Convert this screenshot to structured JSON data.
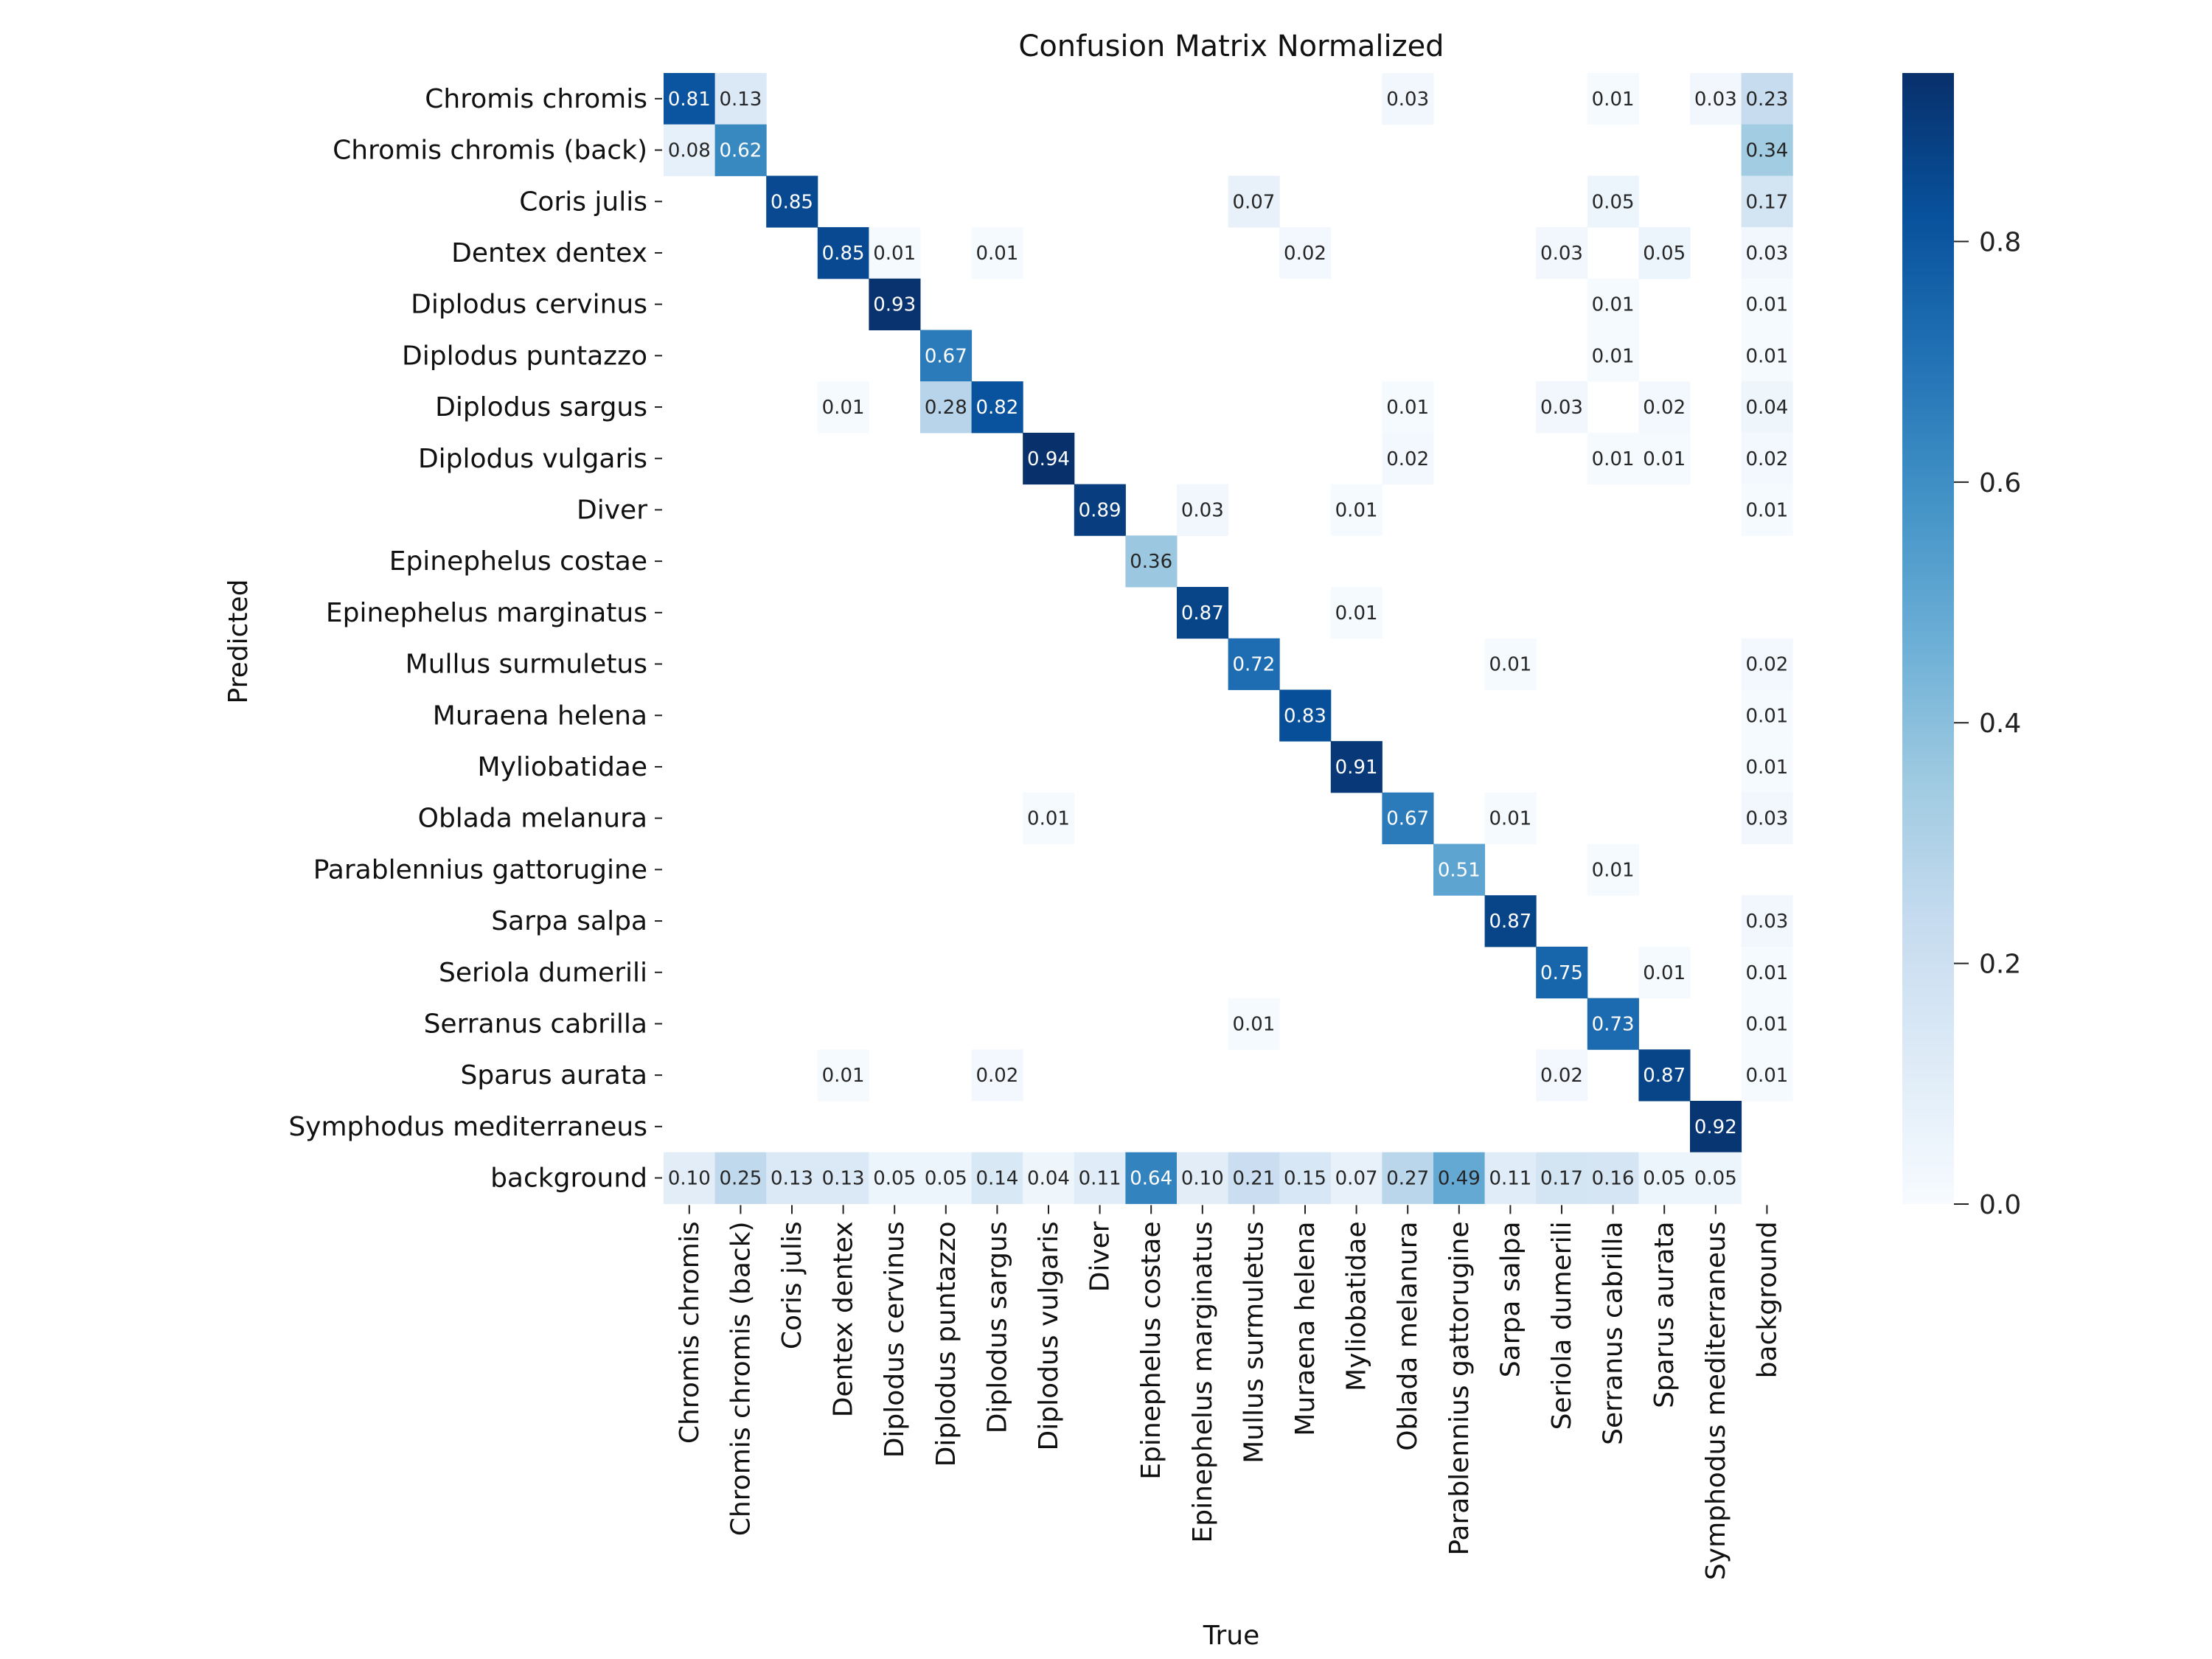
{
  "chart_data": {
    "type": "heatmap",
    "title": "Confusion Matrix Normalized",
    "xlabel": "True",
    "ylabel": "Predicted",
    "colormap": "Blues",
    "colorbar": {
      "ticks": [
        "0.0",
        "0.2",
        "0.4",
        "0.6",
        "0.8"
      ],
      "range": [
        0.0,
        0.94
      ]
    },
    "labels": [
      "Chromis chromis",
      "Chromis chromis (back)",
      "Coris julis",
      "Dentex dentex",
      "Diplodus cervinus",
      "Diplodus puntazzo",
      "Diplodus sargus",
      "Diplodus vulgaris",
      "Diver",
      "Epinephelus costae",
      "Epinephelus marginatus",
      "Mullus surmuletus",
      "Muraena helena",
      "Myliobatidae",
      "Oblada melanura",
      "Parablennius gattorugine",
      "Sarpa salpa",
      "Seriola dumerili",
      "Serranus cabrilla",
      "Sparus aurata",
      "Symphodus mediterraneus",
      "background"
    ],
    "matrix": [
      [
        0.81,
        0.13,
        null,
        null,
        null,
        null,
        null,
        null,
        null,
        null,
        null,
        null,
        null,
        null,
        0.03,
        null,
        null,
        null,
        0.01,
        null,
        0.03,
        0.23
      ],
      [
        0.08,
        0.62,
        null,
        null,
        null,
        null,
        null,
        null,
        null,
        null,
        null,
        null,
        null,
        null,
        null,
        null,
        null,
        null,
        null,
        null,
        null,
        0.34
      ],
      [
        null,
        null,
        0.85,
        null,
        null,
        null,
        null,
        null,
        null,
        null,
        null,
        0.07,
        null,
        null,
        null,
        null,
        null,
        null,
        0.05,
        null,
        null,
        0.17
      ],
      [
        null,
        null,
        null,
        0.85,
        0.01,
        null,
        0.01,
        null,
        null,
        null,
        null,
        null,
        0.02,
        null,
        null,
        null,
        null,
        0.03,
        null,
        0.05,
        null,
        0.03
      ],
      [
        null,
        null,
        null,
        null,
        0.93,
        null,
        null,
        null,
        null,
        null,
        null,
        null,
        null,
        null,
        null,
        null,
        null,
        null,
        0.01,
        null,
        null,
        0.01
      ],
      [
        null,
        null,
        null,
        null,
        null,
        0.67,
        null,
        null,
        null,
        null,
        null,
        null,
        null,
        null,
        null,
        null,
        null,
        null,
        0.01,
        null,
        null,
        0.01
      ],
      [
        null,
        null,
        null,
        0.01,
        null,
        0.28,
        0.82,
        null,
        null,
        null,
        null,
        null,
        null,
        null,
        0.01,
        null,
        null,
        0.03,
        null,
        0.02,
        null,
        0.04
      ],
      [
        null,
        null,
        null,
        null,
        null,
        null,
        null,
        0.94,
        null,
        null,
        null,
        null,
        null,
        null,
        0.02,
        null,
        null,
        null,
        0.01,
        0.01,
        null,
        0.02
      ],
      [
        null,
        null,
        null,
        null,
        null,
        null,
        null,
        null,
        0.89,
        null,
        0.03,
        null,
        null,
        0.01,
        null,
        null,
        null,
        null,
        null,
        null,
        null,
        0.01
      ],
      [
        null,
        null,
        null,
        null,
        null,
        null,
        null,
        null,
        null,
        0.36,
        null,
        null,
        null,
        null,
        null,
        null,
        null,
        null,
        null,
        null,
        null,
        null
      ],
      [
        null,
        null,
        null,
        null,
        null,
        null,
        null,
        null,
        null,
        null,
        0.87,
        null,
        null,
        0.01,
        null,
        null,
        null,
        null,
        null,
        null,
        null,
        null
      ],
      [
        null,
        null,
        null,
        null,
        null,
        null,
        null,
        null,
        null,
        null,
        null,
        0.72,
        null,
        null,
        null,
        null,
        0.01,
        null,
        null,
        null,
        null,
        0.02
      ],
      [
        null,
        null,
        null,
        null,
        null,
        null,
        null,
        null,
        null,
        null,
        null,
        null,
        0.83,
        null,
        null,
        null,
        null,
        null,
        null,
        null,
        null,
        0.01
      ],
      [
        null,
        null,
        null,
        null,
        null,
        null,
        null,
        null,
        null,
        null,
        null,
        null,
        null,
        0.91,
        null,
        null,
        null,
        null,
        null,
        null,
        null,
        0.01
      ],
      [
        null,
        null,
        null,
        null,
        null,
        null,
        null,
        0.01,
        null,
        null,
        null,
        null,
        null,
        null,
        0.67,
        null,
        0.01,
        null,
        null,
        null,
        null,
        0.03
      ],
      [
        null,
        null,
        null,
        null,
        null,
        null,
        null,
        null,
        null,
        null,
        null,
        null,
        null,
        null,
        null,
        0.51,
        null,
        null,
        0.01,
        null,
        null,
        null
      ],
      [
        null,
        null,
        null,
        null,
        null,
        null,
        null,
        null,
        null,
        null,
        null,
        null,
        null,
        null,
        null,
        null,
        0.87,
        null,
        null,
        null,
        null,
        0.03
      ],
      [
        null,
        null,
        null,
        null,
        null,
        null,
        null,
        null,
        null,
        null,
        null,
        null,
        null,
        null,
        null,
        null,
        null,
        0.75,
        null,
        0.01,
        null,
        0.01
      ],
      [
        null,
        null,
        null,
        null,
        null,
        null,
        null,
        null,
        null,
        null,
        null,
        0.01,
        null,
        null,
        null,
        null,
        null,
        null,
        0.73,
        null,
        null,
        0.01
      ],
      [
        null,
        null,
        null,
        0.01,
        null,
        null,
        0.02,
        null,
        null,
        null,
        null,
        null,
        null,
        null,
        null,
        null,
        null,
        0.02,
        null,
        0.87,
        null,
        0.01
      ],
      [
        null,
        null,
        null,
        null,
        null,
        null,
        null,
        null,
        null,
        null,
        null,
        null,
        null,
        null,
        null,
        null,
        null,
        null,
        null,
        null,
        0.92,
        null
      ],
      [
        0.1,
        0.25,
        0.13,
        0.13,
        0.05,
        0.05,
        0.14,
        0.04,
        0.11,
        0.64,
        0.1,
        0.21,
        0.15,
        0.07,
        0.27,
        0.49,
        0.11,
        0.17,
        0.16,
        0.05,
        0.05,
        null
      ]
    ]
  }
}
